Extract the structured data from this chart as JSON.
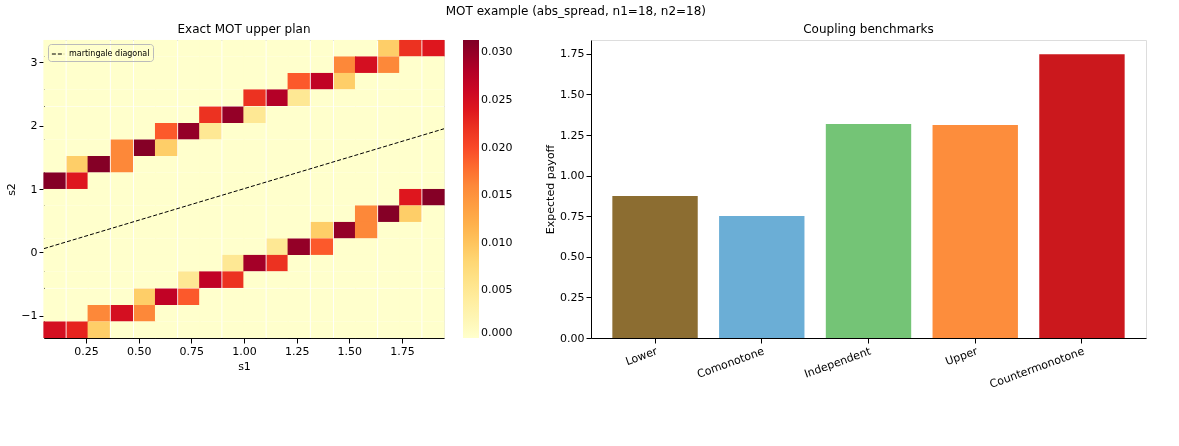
{
  "chart_data": [
    {
      "type": "heatmap",
      "title": "Exact MOT upper plan",
      "xlabel": "s1",
      "ylabel": "s2",
      "annotations": [
        "MOT example (abs_spread, n1=18, n2=18)"
      ],
      "x": [
        0.1,
        0.21,
        0.31,
        0.42,
        0.53,
        0.63,
        0.74,
        0.84,
        0.95,
        1.05,
        1.16,
        1.26,
        1.37,
        1.48,
        1.58,
        1.69,
        1.79,
        1.9
      ],
      "y": [
        3.22,
        2.96,
        2.7,
        2.44,
        2.17,
        1.91,
        1.65,
        1.39,
        1.13,
        0.87,
        0.61,
        0.35,
        0.09,
        -0.17,
        -0.43,
        -0.7,
        -0.96,
        -1.22
      ],
      "xlim": [
        0.05,
        1.95
      ],
      "ylim": [
        -1.35,
        3.35
      ],
      "xticks": [
        0.25,
        {
          "value": 0.5,
          "label": "0.50"
        },
        0.75,
        {
          "value": 1,
          "label": "1.00"
        },
        1.25,
        {
          "value": 1.5,
          "label": "1.50"
        },
        1.75
      ],
      "yticks": [
        {
          "value": -1,
          "label": "−1"
        },
        0,
        1,
        2,
        3
      ],
      "clim": [
        0,
        0.0313
      ],
      "cticks": [
        {
          "value": 0,
          "label": "0.000"
        },
        0.005,
        {
          "value": 0.01,
          "label": "0.010"
        },
        0.015,
        {
          "value": 0.02,
          "label": "0.020"
        },
        0.025,
        {
          "value": 0.03,
          "label": "0.030"
        }
      ],
      "cells": [
        [
          0,
          0,
          0,
          0,
          0,
          0,
          0,
          0,
          0,
          0,
          0,
          0,
          0,
          0,
          0,
          0.009,
          0.022,
          0.024
        ],
        [
          0,
          0,
          0,
          0,
          0,
          0,
          0,
          0,
          0,
          0,
          0,
          0,
          0,
          0.016,
          0.025,
          0.016,
          0,
          0
        ],
        [
          0,
          0,
          0,
          0,
          0,
          0,
          0,
          0,
          0,
          0,
          0,
          0.019,
          0.027,
          0.009,
          0,
          0,
          0,
          0
        ],
        [
          0,
          0,
          0,
          0,
          0,
          0,
          0,
          0,
          0,
          0.022,
          0.028,
          0.005,
          0,
          0,
          0,
          0,
          0,
          0
        ],
        [
          0,
          0,
          0,
          0,
          0,
          0,
          0,
          0.022,
          0.03,
          0.005,
          0,
          0,
          0,
          0,
          0,
          0,
          0,
          0
        ],
        [
          0,
          0,
          0,
          0,
          0,
          0.019,
          0.03,
          0.005,
          0,
          0,
          0,
          0,
          0,
          0,
          0,
          0,
          0,
          0
        ],
        [
          0,
          0,
          0,
          0.016,
          0.031,
          0.009,
          0,
          0,
          0,
          0,
          0,
          0,
          0,
          0,
          0,
          0,
          0,
          0
        ],
        [
          0,
          0.009,
          0.031,
          0.016,
          0,
          0,
          0,
          0,
          0,
          0,
          0,
          0,
          0,
          0,
          0,
          0,
          0,
          0
        ],
        [
          0.031,
          0.024,
          0,
          0,
          0,
          0,
          0,
          0,
          0,
          0,
          0,
          0,
          0,
          0,
          0,
          0,
          0,
          0
        ],
        [
          0,
          0,
          0,
          0,
          0,
          0,
          0,
          0,
          0,
          0,
          0,
          0,
          0,
          0,
          0,
          0,
          0.024,
          0.031
        ],
        [
          0,
          0,
          0,
          0,
          0,
          0,
          0,
          0,
          0,
          0,
          0,
          0,
          0,
          0,
          0.016,
          0.031,
          0.009,
          0
        ],
        [
          0,
          0,
          0,
          0,
          0,
          0,
          0,
          0,
          0,
          0,
          0,
          0,
          0.009,
          0.03,
          0.016,
          0,
          0,
          0
        ],
        [
          0,
          0,
          0,
          0,
          0,
          0,
          0,
          0,
          0,
          0,
          0.005,
          0.03,
          0.019,
          0,
          0,
          0,
          0,
          0
        ],
        [
          0,
          0,
          0,
          0,
          0,
          0,
          0,
          0,
          0.005,
          0.029,
          0.022,
          0,
          0,
          0,
          0,
          0,
          0,
          0
        ],
        [
          0,
          0,
          0,
          0,
          0,
          0,
          0.005,
          0.027,
          0.022,
          0,
          0,
          0,
          0,
          0,
          0,
          0,
          0,
          0
        ],
        [
          0,
          0,
          0,
          0,
          0.009,
          0.027,
          0.019,
          0,
          0,
          0,
          0,
          0,
          0,
          0,
          0,
          0,
          0,
          0
        ],
        [
          0,
          0,
          0.016,
          0.025,
          0.016,
          0,
          0,
          0,
          0,
          0,
          0,
          0,
          0,
          0,
          0,
          0,
          0,
          0
        ],
        [
          0.025,
          0.023,
          0.009,
          0,
          0,
          0,
          0,
          0,
          0,
          0,
          0,
          0,
          0,
          0,
          0,
          0,
          0,
          0
        ]
      ],
      "series": [
        {
          "name": "martingale diagonal",
          "type": "line",
          "color": "#000000",
          "line_style": "dashed",
          "x": [
            0.05,
            1.95
          ],
          "values": [
            0.06,
            1.95
          ]
        }
      ],
      "legend": "top left",
      "grid": false
    },
    {
      "type": "bar",
      "title": "Coupling benchmarks",
      "ylabel": "Expected payoff",
      "categories": [
        "Lower",
        "Comonotone",
        "Independent",
        "Upper",
        "Countermonotone"
      ],
      "values": [
        0.875,
        0.752,
        1.318,
        1.311,
        1.748
      ],
      "colors": [
        "#8c6d31",
        "#6baed6",
        "#74c476",
        "#fd8d3c",
        "#cb181d"
      ],
      "ylim": [
        0,
        1.835
      ],
      "yticks": [
        {
          "value": 0,
          "label": "0.00"
        },
        0.25,
        {
          "value": 0.5,
          "label": "0.50"
        },
        0.75,
        {
          "value": 1,
          "label": "1.00"
        },
        1.25,
        {
          "value": 1.5,
          "label": "1.50"
        },
        1.75
      ],
      "grid": false
    }
  ]
}
